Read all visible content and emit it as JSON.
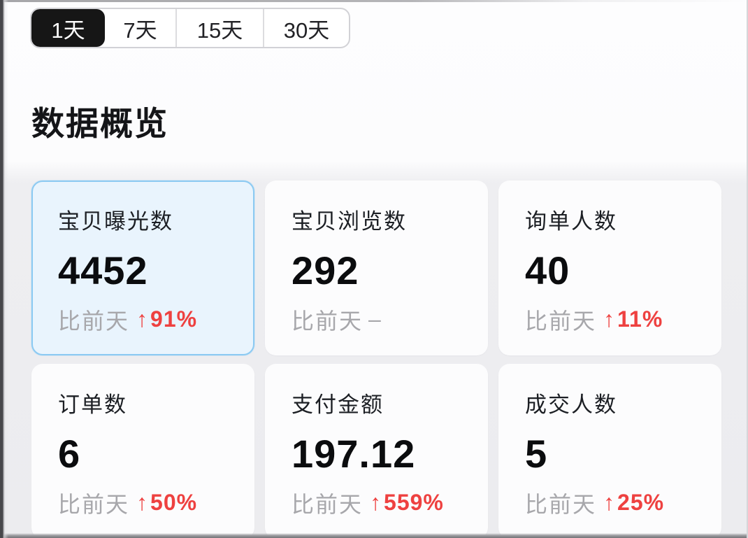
{
  "time_tabs": {
    "items": [
      {
        "key": "1d",
        "label": "1天",
        "selected": true
      },
      {
        "key": "7d",
        "label": "7天",
        "selected": false
      },
      {
        "key": "15d",
        "label": "15天",
        "selected": false
      },
      {
        "key": "30d",
        "label": "30天",
        "selected": false
      }
    ]
  },
  "section": {
    "title": "数据概览"
  },
  "compare_prefix": "比前天",
  "cards": [
    {
      "key": "item-exposure",
      "label": "宝贝曝光数",
      "value": "4452",
      "direction": "up",
      "change": "91%",
      "highlighted": true
    },
    {
      "key": "item-views",
      "label": "宝贝浏览数",
      "value": "292",
      "direction": "flat",
      "change": "–",
      "highlighted": false
    },
    {
      "key": "inquiry-users",
      "label": "询单人数",
      "value": "40",
      "direction": "up",
      "change": "11%",
      "highlighted": false
    },
    {
      "key": "orders",
      "label": "订单数",
      "value": "6",
      "direction": "up",
      "change": "50%",
      "highlighted": false
    },
    {
      "key": "payment-amount",
      "label": "支付金额",
      "value": "197.12",
      "direction": "up",
      "change": "559%",
      "highlighted": false
    },
    {
      "key": "deal-users",
      "label": "成交人数",
      "value": "5",
      "direction": "up",
      "change": "25%",
      "highlighted": false
    }
  ],
  "icons": {
    "up_arrow": "↑"
  },
  "colors": {
    "up_red": "#ee4140",
    "muted_gray": "#a7a7ab",
    "highlight_bg": "#e9f4fd",
    "highlight_border": "#8ccaf2",
    "selected_tab_bg": "#161616",
    "selected_tab_text": "#ffffff"
  }
}
